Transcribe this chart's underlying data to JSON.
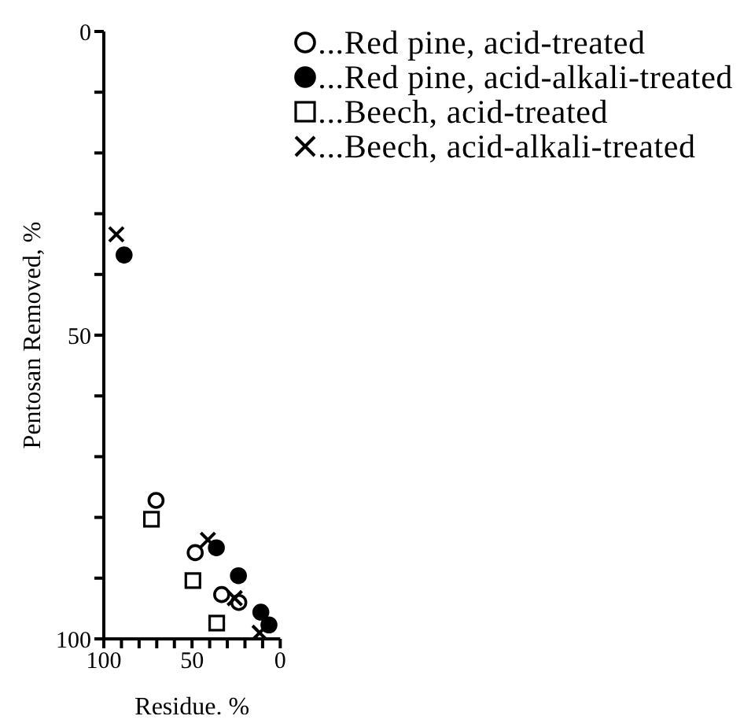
{
  "chart_data": {
    "type": "scatter",
    "xlabel": "Residue. %",
    "ylabel": "Pentosan Removed, %",
    "xlim": [
      100,
      0
    ],
    "ylim": [
      100,
      0
    ],
    "xticks": [
      100,
      {
        "value": 90,
        "label": null
      },
      {
        "value": 80,
        "label": null
      },
      {
        "value": 70,
        "label": null
      },
      {
        "value": 60,
        "label": null
      },
      50,
      {
        "value": 40,
        "label": null
      },
      {
        "value": 30,
        "label": null
      },
      {
        "value": 20,
        "label": null
      },
      {
        "value": 10,
        "label": null
      },
      0
    ],
    "yticks": [
      0,
      {
        "value": 10,
        "label": null
      },
      {
        "value": 20,
        "label": null
      },
      {
        "value": 30,
        "label": null
      },
      {
        "value": 40,
        "label": null
      },
      50,
      {
        "value": 60,
        "label": null
      },
      {
        "value": 70,
        "label": null
      },
      {
        "value": 80,
        "label": null
      },
      {
        "value": 90,
        "label": null
      },
      100
    ],
    "grid": false,
    "legend": "top right",
    "series": [
      {
        "name": "...Red pine, acid-treated",
        "color": "#ffffff",
        "marker": "circle",
        "x": [
          70.4,
          48.2,
          33.2,
          23.5
        ],
        "values": [
          77.2,
          85.8,
          92.7,
          94
        ]
      },
      {
        "name": "...Red pine, acid-alkali-treated",
        "color": "#000000",
        "marker": "circle",
        "x": [
          88.5,
          36.2,
          23.7,
          11,
          6.4
        ],
        "values": [
          36.8,
          85,
          89.6,
          95.6,
          97.7
        ]
      },
      {
        "name": "...Beech, acid-treated",
        "color": "#ffffff",
        "marker": "square",
        "x": [
          73,
          49.5,
          36
        ],
        "values": [
          80.3,
          90.4,
          97.4
        ]
      },
      {
        "name": "...Beech, acid-alkali-treated",
        "color": "#000000",
        "marker": "cross",
        "x": [
          92.9,
          41,
          25.8,
          11.7
        ],
        "values": [
          33.4,
          83.7,
          93.3,
          99
        ]
      }
    ]
  }
}
